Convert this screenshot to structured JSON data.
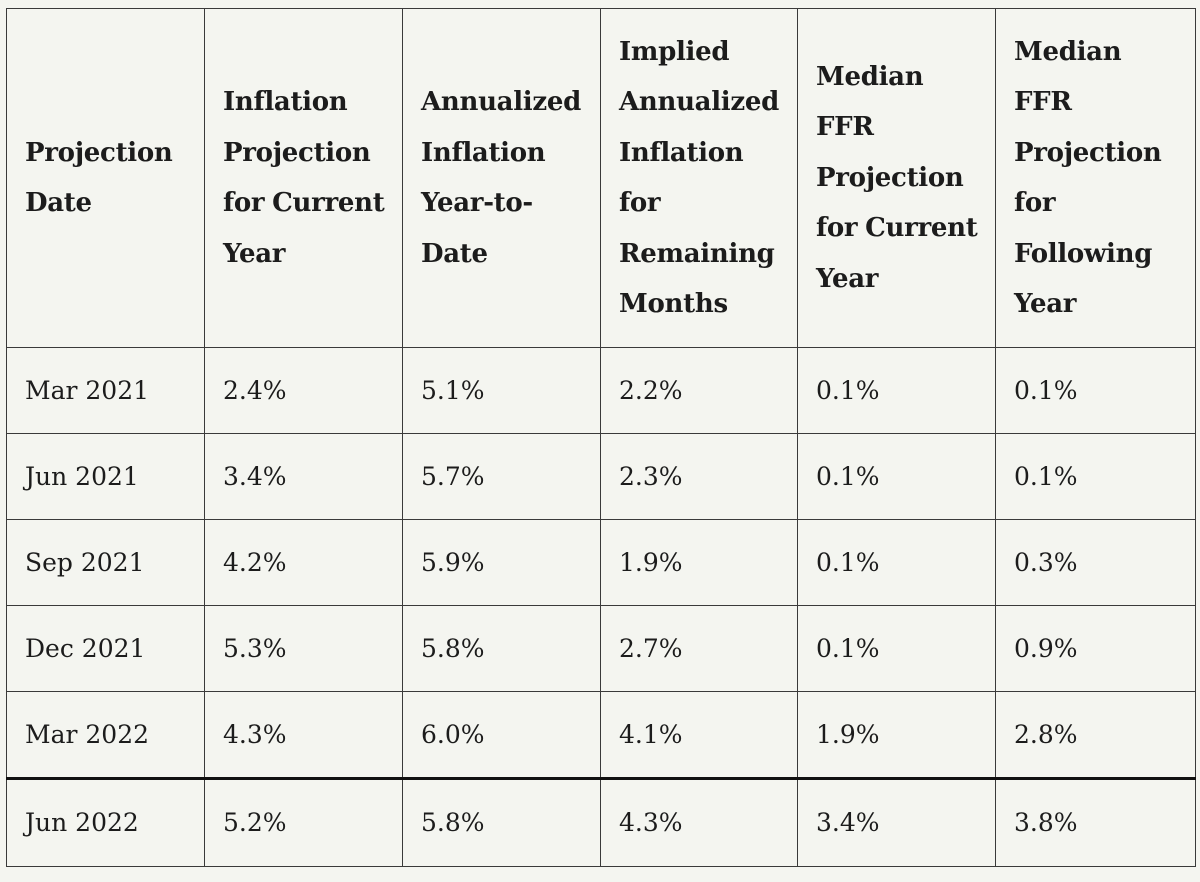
{
  "table": {
    "headers": [
      "Projection Date",
      "Inflation Projection for Current Year",
      "Annualized Inflation Year-to-Date",
      "Implied Annualized Inflation for Remaining Months",
      "Median FFR Projection for Current Year",
      "Median FFR Projection for Following Year"
    ],
    "rows": [
      [
        "Mar 2021",
        "2.4%",
        "5.1%",
        "2.2%",
        "0.1%",
        "0.1%"
      ],
      [
        "Jun 2021",
        "3.4%",
        "5.7%",
        "2.3%",
        "0.1%",
        "0.1%"
      ],
      [
        "Sep 2021",
        "4.2%",
        "5.9%",
        "1.9%",
        "0.1%",
        "0.3%"
      ],
      [
        "Dec 2021",
        "5.3%",
        "5.8%",
        "2.7%",
        "0.1%",
        "0.9%"
      ],
      [
        "Mar 2022",
        "4.3%",
        "6.0%",
        "4.1%",
        "1.9%",
        "2.8%"
      ],
      [
        "Jun 2022",
        "5.2%",
        "5.8%",
        "4.3%",
        "3.4%",
        "3.8%"
      ]
    ]
  }
}
